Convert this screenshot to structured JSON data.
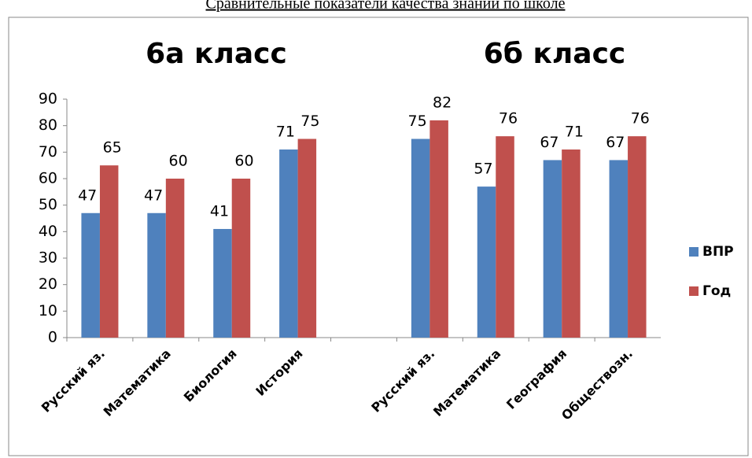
{
  "chart_data": {
    "type": "bar",
    "title": "Сравнительные показатели качества знаний по школе",
    "annotations": [
      "6а класс",
      "6б класс"
    ],
    "categories": [
      "Русский яз.",
      "Математика",
      "Биология",
      "История",
      null,
      "Русский яз.",
      "Математика",
      "География",
      "Обществозн."
    ],
    "series": [
      {
        "name": "ВПР",
        "color": "#4f81bd",
        "values": [
          47,
          47,
          41,
          71,
          null,
          75,
          57,
          67,
          67
        ]
      },
      {
        "name": "Год",
        "color": "#c0504d",
        "values": [
          65,
          60,
          60,
          75,
          null,
          82,
          76,
          71,
          76
        ]
      }
    ],
    "ylim": [
      0,
      90
    ],
    "yticks": [
      0,
      10,
      20,
      30,
      40,
      50,
      60,
      70,
      80,
      90
    ],
    "legend": "right"
  }
}
